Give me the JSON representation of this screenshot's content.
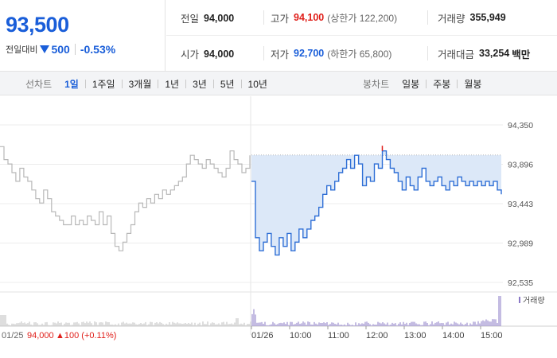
{
  "summary": {
    "price": "93,500",
    "change_label": "전일대비",
    "change_amount": "500",
    "change_rate": "-0.53%",
    "colors": {
      "up": "#e0201b",
      "down": "#1a5ed9"
    }
  },
  "stats": {
    "prev_close": {
      "label": "전일",
      "value": "94,000"
    },
    "high": {
      "label": "고가",
      "value": "94,100",
      "sub": "(상한가 122,200)"
    },
    "volume": {
      "label": "거래량",
      "value": "355,949"
    },
    "open": {
      "label": "시가",
      "value": "94,000"
    },
    "low": {
      "label": "저가",
      "value": "92,700",
      "sub": "(하한가 65,800)"
    },
    "turnover": {
      "label": "거래대금",
      "value": "33,254",
      "unit": "백만"
    }
  },
  "periods": {
    "line_title": "선차트",
    "line_options": [
      "1일",
      "1주일",
      "3개월",
      "1년",
      "3년",
      "5년",
      "10년"
    ],
    "line_selected": "1일",
    "candle_title": "봉차트",
    "candle_options": [
      "일봉",
      "주봉",
      "월봉"
    ]
  },
  "chart_data": {
    "type": "line",
    "price_axis_ticks": [
      "94,350",
      "93,896",
      "93,443",
      "92,989",
      "92,535"
    ],
    "y_ticks": [
      94350,
      93896,
      93443,
      92989,
      92535
    ],
    "x_tick_labels": [
      "01/26",
      "10:00",
      "11:00",
      "12:00",
      "13:00",
      "14:00",
      "15:00"
    ],
    "prev_day_label": "01/25",
    "prev_day_close": "94,000",
    "prev_day_change": "▲100 (+0.11%)",
    "volume_legend": "거래량",
    "reference_line": 94000,
    "series": [
      {
        "day": "01/25",
        "values": [
          94100,
          93950,
          93900,
          93800,
          93700,
          93850,
          93750,
          93700,
          93600,
          93500,
          93450,
          93600,
          93500,
          93350,
          93300,
          93250,
          93200,
          93200,
          93300,
          93200,
          93250,
          93200,
          93300,
          93250,
          93200,
          93350,
          93200,
          93300,
          93100,
          92950,
          92900,
          93000,
          93100,
          93200,
          93350,
          93450,
          93400,
          93500,
          93450,
          93550,
          93500,
          93600,
          93550,
          93600,
          93650,
          93700,
          93750,
          93900,
          94000,
          93950,
          93900,
          93850,
          93950,
          93900,
          93850,
          93800,
          93750,
          93850,
          94050,
          93950,
          93900,
          93800,
          93850,
          94000
        ]
      },
      {
        "day": "01/26",
        "values": [
          93700,
          93050,
          92900,
          93000,
          93100,
          92950,
          92850,
          93050,
          92950,
          93100,
          92900,
          93000,
          93150,
          93050,
          93150,
          93250,
          93300,
          93400,
          93550,
          93650,
          93600,
          93700,
          93800,
          93850,
          93950,
          93850,
          94000,
          93900,
          93650,
          93750,
          93700,
          93900,
          93850,
          94050,
          93950,
          93850,
          93800,
          93700,
          93600,
          93750,
          93650,
          93600,
          93750,
          93850,
          93700,
          93650,
          93700,
          93750,
          93650,
          93600,
          93700,
          93650,
          93750,
          93700,
          93650,
          93700,
          93650,
          93700,
          93650,
          93700,
          93650,
          93700,
          93600,
          93550
        ]
      }
    ]
  }
}
